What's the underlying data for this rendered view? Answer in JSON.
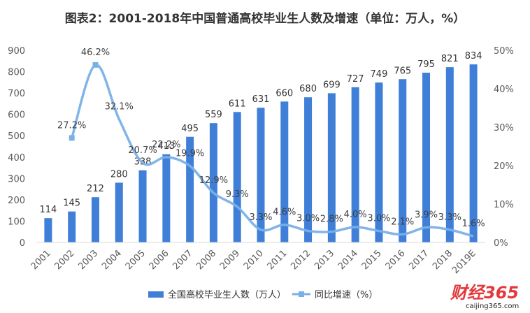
{
  "chart_data": {
    "type": "bar+line",
    "title": "图表2：2001-2018年中国普通高校毕业生人数及增速（单位：万人，%）",
    "categories": [
      "2001",
      "2002",
      "2003",
      "2004",
      "2005",
      "2006",
      "2007",
      "2008",
      "2009",
      "2010",
      "2011",
      "2012",
      "2013",
      "2014",
      "2015",
      "2016",
      "2017",
      "2018",
      "2019E"
    ],
    "series": [
      {
        "name": "全国高校毕业生人数（万人）",
        "kind": "bar",
        "axis": "left",
        "color": "#3f7fd8",
        "values": [
          114,
          145,
          212,
          280,
          338,
          413,
          495,
          559,
          611,
          631,
          660,
          680,
          699,
          727,
          749,
          765,
          795,
          821,
          834
        ],
        "labels": [
          "114",
          "145",
          "212",
          "280",
          "338",
          "413",
          "495",
          "559",
          "611",
          "631",
          "660",
          "680",
          "699",
          "727",
          "749",
          "765",
          "795",
          "821",
          "834"
        ]
      },
      {
        "name": "同比增速（%）",
        "kind": "line",
        "axis": "right",
        "color": "#7ab0e8",
        "values": [
          null,
          27.2,
          46.2,
          32.1,
          20.7,
          22.2,
          19.9,
          12.9,
          9.3,
          3.3,
          4.6,
          3.0,
          2.8,
          4.0,
          3.0,
          2.1,
          3.9,
          3.3,
          1.6
        ],
        "labels": [
          null,
          "27.2%",
          "46.2%",
          "32.1%",
          "20.7%",
          "22.2%",
          "19.9%",
          "12.9%",
          "9.3%",
          "3.3%",
          "4.6%",
          "3.0%",
          "2.8%",
          "4.0%",
          "3.0%",
          "2.1%",
          "3.9%",
          "3.3%",
          "1.6%"
        ]
      }
    ],
    "y_left": {
      "min": 0,
      "max": 900,
      "ticks": [
        "0",
        "100",
        "200",
        "300",
        "400",
        "500",
        "600",
        "700",
        "800",
        "900"
      ]
    },
    "y_right": {
      "min": 0,
      "max": 50,
      "ticks": [
        "0%",
        "10%",
        "20%",
        "30%",
        "40%",
        "50%"
      ]
    },
    "legend": {
      "placement": "bottom-center",
      "items": [
        "全国高校毕业生人数（万人）",
        "同比增速（%）"
      ]
    },
    "grid": false
  },
  "watermark": {
    "brand": "财经365",
    "url": "caijing365.com"
  }
}
